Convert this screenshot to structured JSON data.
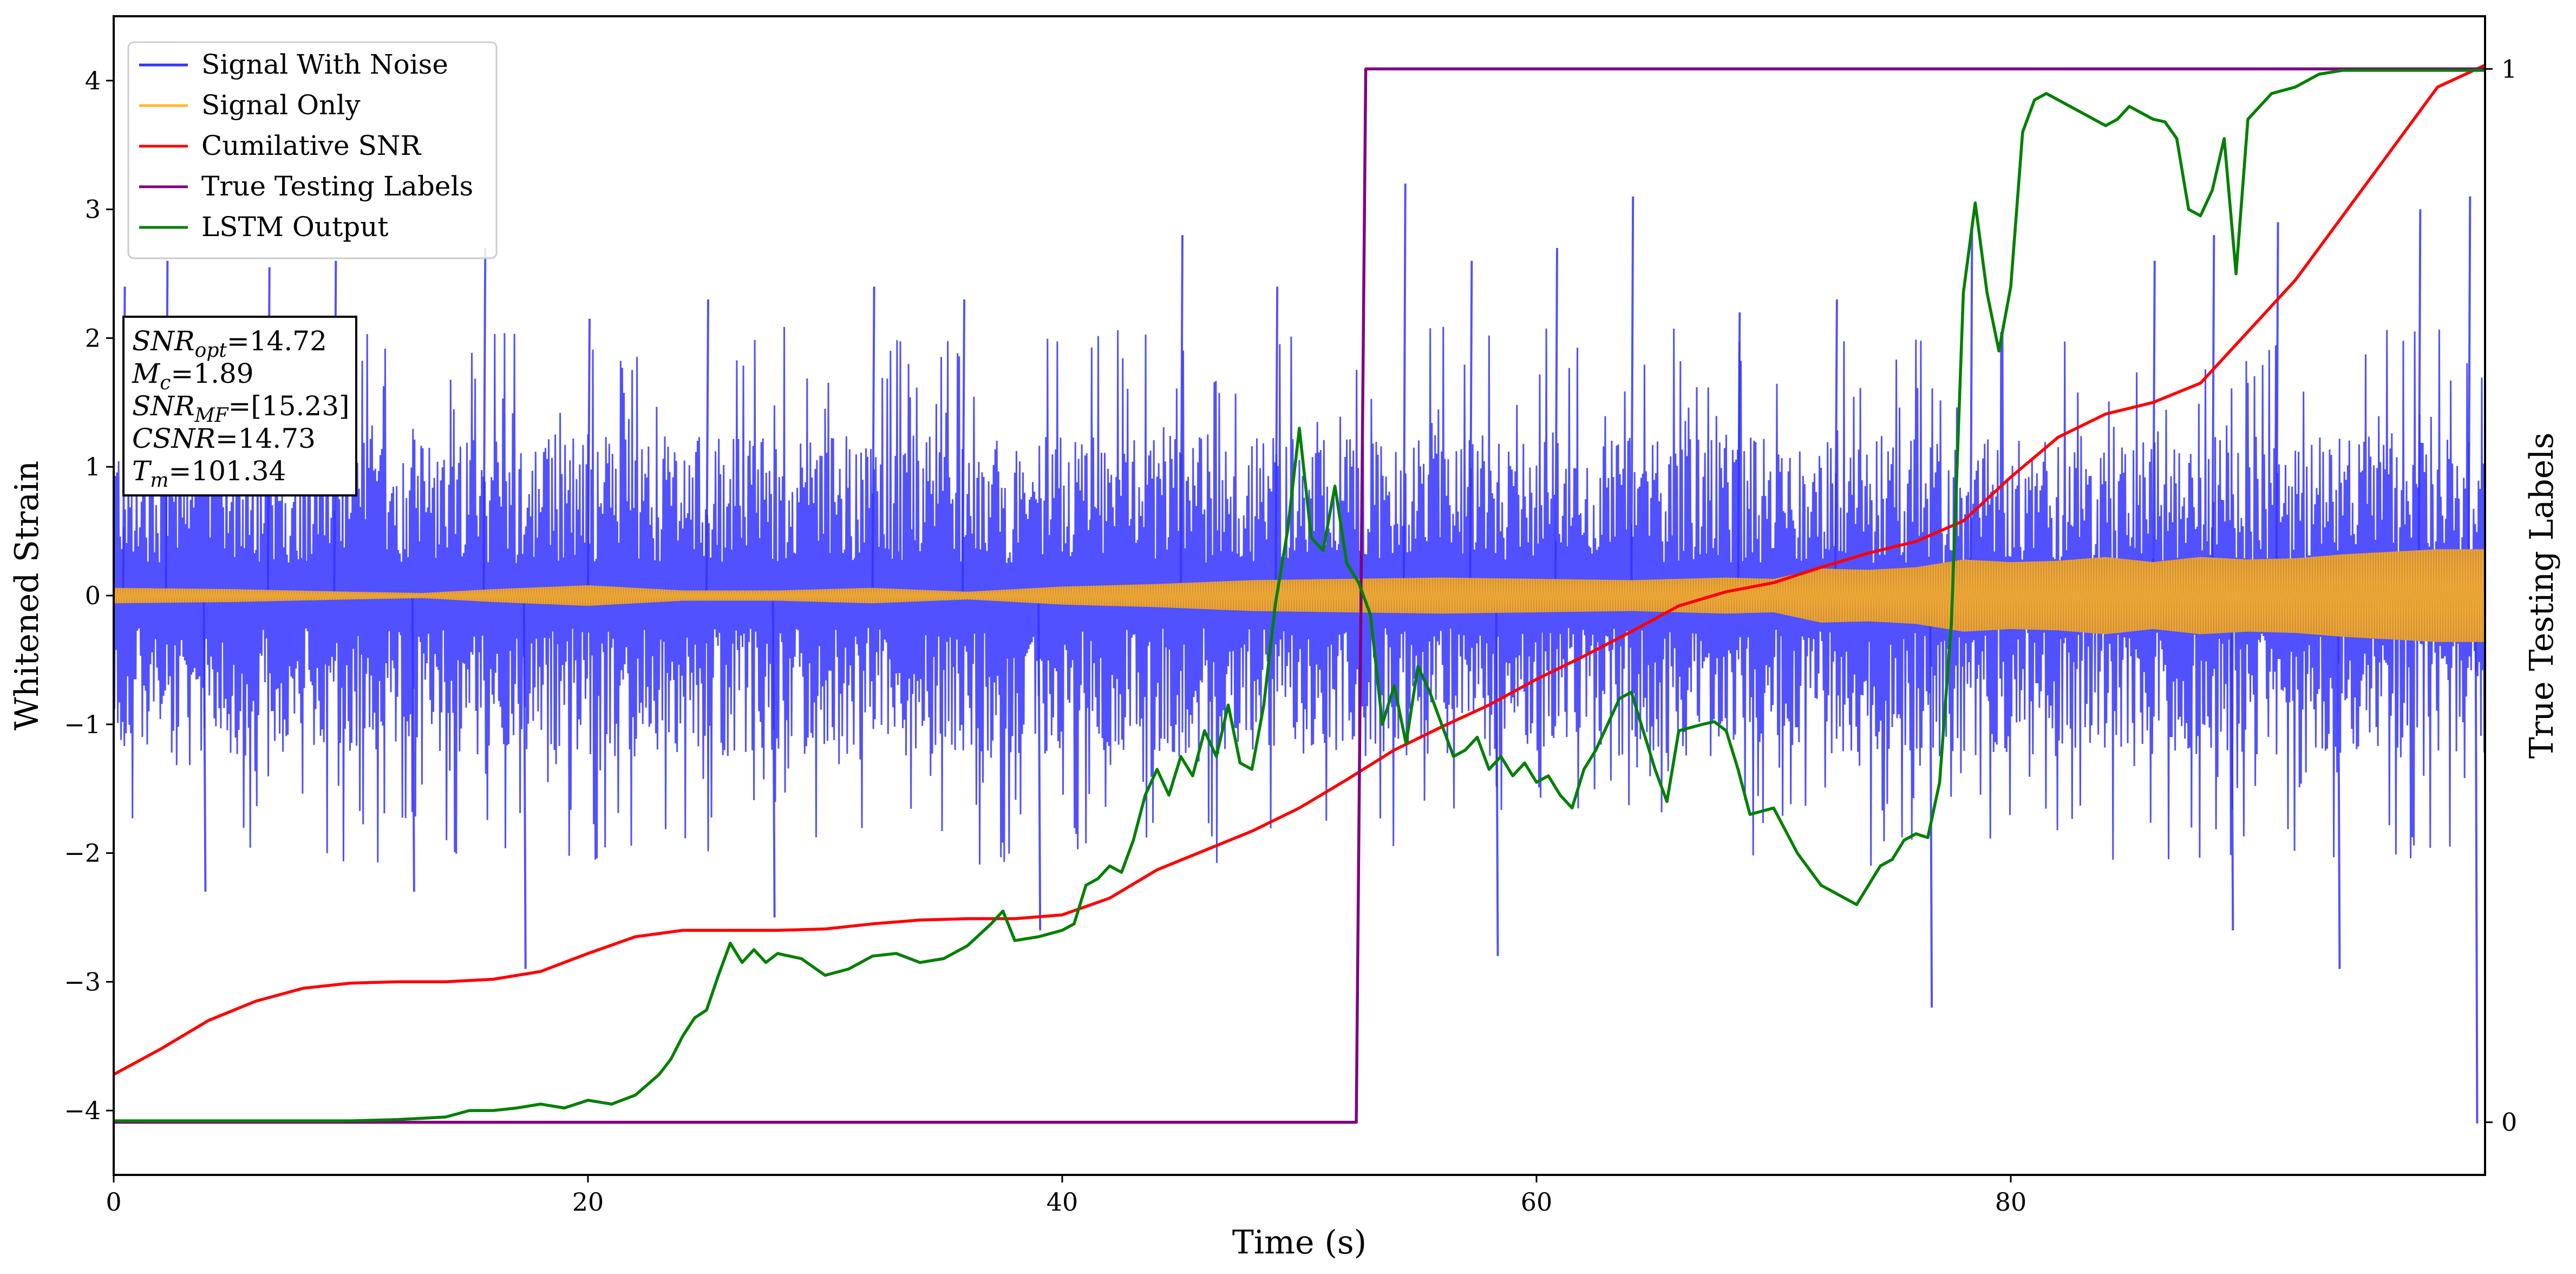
{
  "chart_data": {
    "type": "line",
    "xlabel": "Time (s)",
    "ylabel": "Whitened Strain",
    "y2label": "True Testing Labels",
    "xlim": [
      0,
      100
    ],
    "ylim": [
      -4.5,
      4.5
    ],
    "y2lim": [
      -0.05,
      1.05
    ],
    "xticks": [
      0,
      20,
      40,
      60,
      80
    ],
    "yticks": [
      -4,
      -3,
      -2,
      -1,
      0,
      1,
      2,
      3,
      4
    ],
    "y2ticks": [
      0,
      1
    ],
    "grid": false,
    "legend_position": "top-left",
    "series": [
      {
        "name": "Signal With Noise",
        "color": "#3333ff",
        "axis": "left",
        "kind": "noise",
        "typical_band": [
          -1.2,
          1.2
        ],
        "peaks": [
          {
            "x": 0.4,
            "y": 2.4
          },
          {
            "x": 2.2,
            "y": 2.6
          },
          {
            "x": 3.8,
            "y": -2.3
          },
          {
            "x": 6.5,
            "y": 2.55
          },
          {
            "x": 9.3,
            "y": 2.6
          },
          {
            "x": 12.6,
            "y": -2.3
          },
          {
            "x": 15.6,
            "y": 2.7
          },
          {
            "x": 17.3,
            "y": -2.9
          },
          {
            "x": 20.0,
            "y": 2.15
          },
          {
            "x": 25.0,
            "y": 2.3
          },
          {
            "x": 27.8,
            "y": -2.5
          },
          {
            "x": 32.0,
            "y": 2.4
          },
          {
            "x": 35.8,
            "y": 2.3
          },
          {
            "x": 39.0,
            "y": -2.6
          },
          {
            "x": 45.0,
            "y": 2.8
          },
          {
            "x": 49.0,
            "y": 2.4
          },
          {
            "x": 54.4,
            "y": 3.2
          },
          {
            "x": 57.2,
            "y": 2.6
          },
          {
            "x": 58.3,
            "y": -2.8
          },
          {
            "x": 60.8,
            "y": 2.7
          },
          {
            "x": 64.0,
            "y": 3.1
          },
          {
            "x": 68.5,
            "y": 2.2
          },
          {
            "x": 72.6,
            "y": 2.3
          },
          {
            "x": 76.6,
            "y": -3.2
          },
          {
            "x": 78.3,
            "y": 2.9
          },
          {
            "x": 86.0,
            "y": 2.6
          },
          {
            "x": 88.5,
            "y": 2.8
          },
          {
            "x": 89.3,
            "y": -2.6
          },
          {
            "x": 91.2,
            "y": 2.9
          },
          {
            "x": 93.8,
            "y": -2.9
          },
          {
            "x": 97.2,
            "y": 3.0
          },
          {
            "x": 99.3,
            "y": 3.1
          },
          {
            "x": 99.6,
            "y": -4.1
          }
        ]
      },
      {
        "name": "Signal Only",
        "color": "#ffb733",
        "axis": "left",
        "kind": "envelope",
        "envelope_x": [
          0,
          5,
          10,
          13,
          16,
          20,
          24,
          28,
          32,
          36,
          40,
          44,
          48,
          52,
          56,
          60,
          64,
          68,
          70,
          72,
          74,
          76,
          78,
          80,
          82,
          84,
          86,
          88,
          90,
          92,
          94,
          96,
          98,
          100
        ],
        "envelope_y": [
          0.06,
          0.05,
          0.03,
          0.02,
          0.05,
          0.08,
          0.04,
          0.04,
          0.06,
          0.03,
          0.07,
          0.09,
          0.12,
          0.13,
          0.14,
          0.13,
          0.12,
          0.14,
          0.13,
          0.21,
          0.2,
          0.22,
          0.28,
          0.26,
          0.27,
          0.3,
          0.26,
          0.3,
          0.28,
          0.29,
          0.32,
          0.34,
          0.36,
          0.36
        ]
      },
      {
        "name": "Cumilative SNR",
        "color": "#ff0000",
        "axis": "left",
        "kind": "line",
        "x": [
          0,
          2,
          4,
          6,
          8,
          10,
          12,
          14,
          16,
          18,
          20,
          22,
          24,
          26,
          28,
          30,
          32,
          34,
          36,
          38,
          40,
          42,
          44,
          46,
          48,
          50,
          52,
          54,
          56,
          58,
          60,
          62,
          64,
          66,
          68,
          70,
          72,
          74,
          76,
          78,
          80,
          82,
          84,
          86,
          88,
          90,
          92,
          94,
          96,
          98,
          100
        ],
        "y": [
          -3.72,
          -3.52,
          -3.3,
          -3.15,
          -3.05,
          -3.01,
          -3.0,
          -3.0,
          -2.98,
          -2.92,
          -2.78,
          -2.65,
          -2.6,
          -2.6,
          -2.6,
          -2.59,
          -2.55,
          -2.52,
          -2.51,
          -2.51,
          -2.48,
          -2.35,
          -2.13,
          -1.98,
          -1.83,
          -1.65,
          -1.43,
          -1.2,
          -1.02,
          -0.85,
          -0.65,
          -0.47,
          -0.28,
          -0.08,
          0.03,
          0.1,
          0.22,
          0.33,
          0.42,
          0.58,
          0.92,
          1.23,
          1.41,
          1.5,
          1.65,
          2.05,
          2.45,
          2.95,
          3.45,
          3.95,
          4.12
        ]
      },
      {
        "name": "True Testing Labels",
        "color": "#800080",
        "axis": "right",
        "kind": "line",
        "x": [
          0,
          52.4,
          52.8,
          100
        ],
        "y": [
          0,
          0,
          1,
          1
        ]
      },
      {
        "name": "LSTM Output",
        "color": "#008000",
        "axis": "left",
        "kind": "line",
        "x": [
          0,
          10,
          12,
          14,
          15,
          16,
          17,
          18,
          19,
          20,
          21,
          22,
          22.5,
          23,
          23.5,
          24,
          24.5,
          25,
          25.5,
          26,
          26.5,
          27,
          27.5,
          28,
          29,
          30,
          31,
          32,
          33,
          34,
          35,
          36,
          37,
          37.5,
          38,
          39,
          40,
          40.5,
          41,
          41.5,
          42,
          42.5,
          43,
          43.5,
          44,
          44.5,
          45,
          45.5,
          46,
          46.5,
          47,
          47.5,
          48,
          48.5,
          49,
          49.5,
          50,
          50.5,
          51,
          51.5,
          52,
          52.5,
          53,
          53.5,
          54,
          54.5,
          55,
          55.5,
          56,
          56.5,
          57,
          57.5,
          58,
          58.5,
          59,
          59.5,
          60,
          60.5,
          61,
          61.5,
          62,
          62.5,
          63,
          63.5,
          64,
          64.5,
          65,
          65.5,
          66,
          67,
          67.5,
          68,
          68.5,
          69,
          70,
          71,
          72,
          73,
          73.5,
          74,
          74.5,
          75,
          75.5,
          76,
          76.5,
          77,
          77.5,
          78,
          78.5,
          79,
          79.5,
          80,
          80.5,
          81,
          81.5,
          82,
          82.5,
          83,
          83.5,
          84,
          84.5,
          85,
          85.5,
          86,
          86.5,
          87,
          87.5,
          88,
          88.5,
          89,
          89.5,
          90,
          91,
          92,
          93,
          94,
          100
        ],
        "y": [
          -4.08,
          -4.08,
          -4.07,
          -4.05,
          -4.0,
          -4.0,
          -3.98,
          -3.95,
          -3.98,
          -3.92,
          -3.95,
          -3.88,
          -3.8,
          -3.72,
          -3.6,
          -3.42,
          -3.28,
          -3.22,
          -2.95,
          -2.7,
          -2.85,
          -2.75,
          -2.85,
          -2.78,
          -2.82,
          -2.95,
          -2.9,
          -2.8,
          -2.78,
          -2.85,
          -2.82,
          -2.72,
          -2.55,
          -2.45,
          -2.68,
          -2.65,
          -2.6,
          -2.55,
          -2.25,
          -2.2,
          -2.1,
          -2.15,
          -1.9,
          -1.55,
          -1.35,
          -1.55,
          -1.25,
          -1.4,
          -1.05,
          -1.25,
          -0.85,
          -1.3,
          -1.35,
          -0.85,
          -0.05,
          0.5,
          1.3,
          0.45,
          0.35,
          0.85,
          0.25,
          0.1,
          -0.15,
          -1.0,
          -0.7,
          -1.15,
          -0.55,
          -0.75,
          -1.0,
          -1.25,
          -1.2,
          -1.1,
          -1.35,
          -1.25,
          -1.4,
          -1.3,
          -1.45,
          -1.4,
          -1.55,
          -1.65,
          -1.35,
          -1.2,
          -1.0,
          -0.8,
          -0.75,
          -1.05,
          -1.35,
          -1.6,
          -1.05,
          -1.0,
          -0.98,
          -1.05,
          -1.35,
          -1.7,
          -1.65,
          -2.0,
          -2.25,
          -2.35,
          -2.4,
          -2.25,
          -2.1,
          -2.05,
          -1.9,
          -1.85,
          -1.88,
          -1.45,
          -0.2,
          2.35,
          3.05,
          2.35,
          1.9,
          2.4,
          3.6,
          3.85,
          3.9,
          3.85,
          3.8,
          3.75,
          3.7,
          3.65,
          3.7,
          3.8,
          3.75,
          3.7,
          3.68,
          3.55,
          3.0,
          2.95,
          3.15,
          3.55,
          2.5,
          3.7,
          3.9,
          3.95,
          4.05,
          4.08,
          4.08
        ]
      }
    ],
    "annotation_lines": [
      {
        "var": "SNR",
        "sub": "opt",
        "value": "=14.72"
      },
      {
        "var": "M",
        "sub": "c",
        "value": "=1.89"
      },
      {
        "var": "SNR",
        "sub": "MF",
        "value": "=[15.23]"
      },
      {
        "var": "CSNR",
        "sub": "",
        "value": "=14.73"
      },
      {
        "var": "T",
        "sub": "m",
        "value": "=101.34"
      }
    ]
  }
}
